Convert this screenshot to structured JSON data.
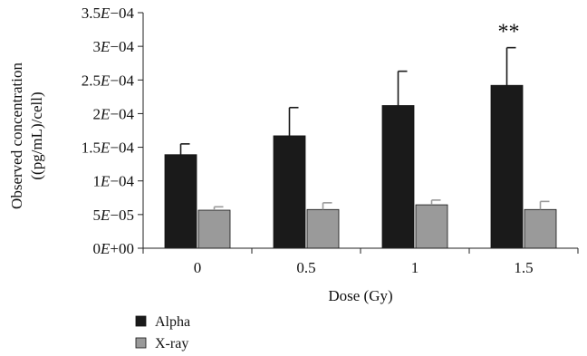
{
  "chart_data": {
    "type": "bar",
    "xlabel": "Dose (Gy)",
    "ylabel_line1": "Observed concentration",
    "ylabel_line2": "((pg/mL)/cell)",
    "categories": [
      "0",
      "0.5",
      "1",
      "1.5"
    ],
    "ylim": [
      0,
      0.00035
    ],
    "yticks": [
      0,
      5e-05,
      0.0001,
      0.00015,
      0.0002,
      0.00025,
      0.0003,
      0.00035
    ],
    "ytick_labels": [
      {
        "mant": "0",
        "exp": "+00"
      },
      {
        "mant": "5",
        "exp": "−05"
      },
      {
        "mant": "1",
        "exp": "−04"
      },
      {
        "mant": "1.5",
        "exp": "−04"
      },
      {
        "mant": "2",
        "exp": "−04"
      },
      {
        "mant": "2.5",
        "exp": "−04"
      },
      {
        "mant": "3",
        "exp": "−04"
      },
      {
        "mant": "3.5",
        "exp": "−04"
      }
    ],
    "series": [
      {
        "name": "Alpha",
        "color": "#1a1a1a",
        "values": [
          0.000139,
          0.000167,
          0.000212,
          0.000242
        ],
        "errors": [
          1.6e-05,
          4.2e-05,
          5.1e-05,
          5.6e-05
        ]
      },
      {
        "name": "X-ray",
        "color": "#9a9a9a",
        "values": [
          5.65e-05,
          5.75e-05,
          6.45e-05,
          5.75e-05
        ],
        "errors": [
          5e-06,
          1e-05,
          7e-06,
          1.2e-05
        ]
      }
    ],
    "annotations": [
      {
        "category": "1.5",
        "series": "Alpha",
        "text": "**"
      }
    ],
    "grid": false,
    "legend_position": "bottom-left"
  }
}
